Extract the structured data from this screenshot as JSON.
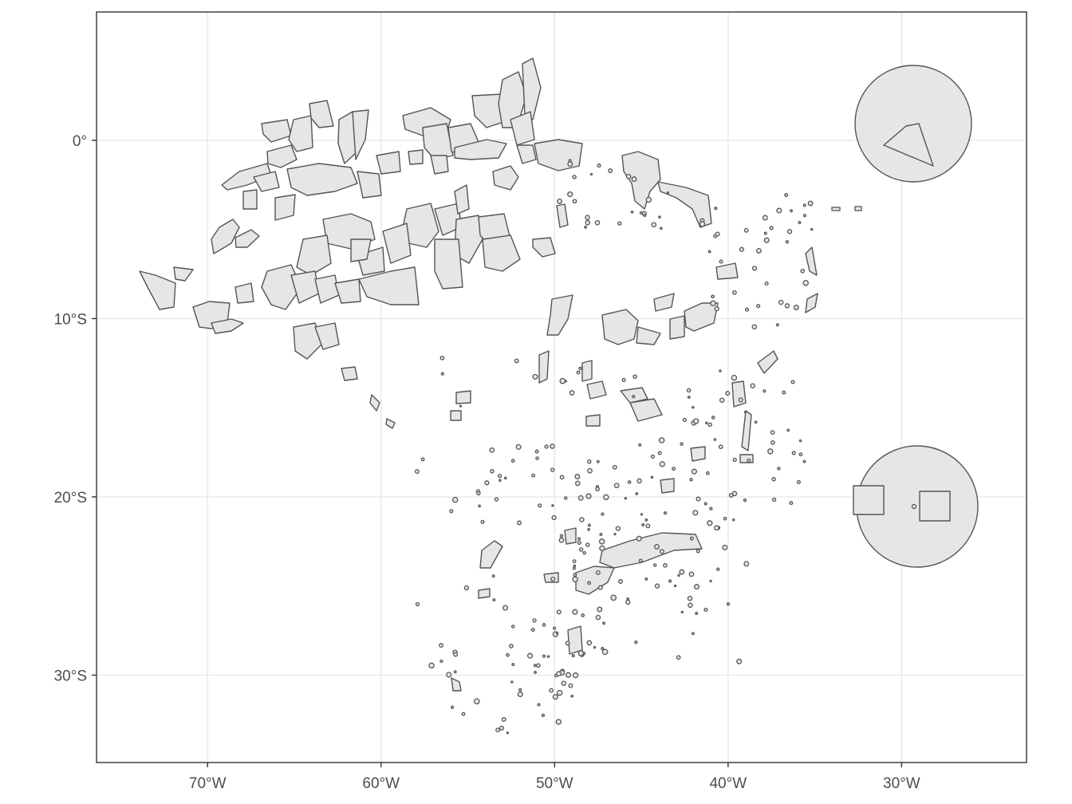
{
  "map": {
    "x_ticks": [
      {
        "value": -70,
        "label": "70°W"
      },
      {
        "value": -60,
        "label": "60°W"
      },
      {
        "value": -50,
        "label": "50°W"
      },
      {
        "value": -40,
        "label": "40°W"
      },
      {
        "value": -30,
        "label": "30°W"
      }
    ],
    "y_ticks": [
      {
        "value": 0,
        "label": "0°"
      },
      {
        "value": -10,
        "label": "10°S"
      },
      {
        "value": -20,
        "label": "20°S"
      },
      {
        "value": -30,
        "label": "30°S"
      }
    ],
    "xlim": [
      -76.4,
      -22.8
    ],
    "ylim": [
      -34.9,
      7.2
    ],
    "fill_color": "#e6e6e6",
    "stroke_color": "#555555",
    "grid_color": "#ebebeb"
  }
}
